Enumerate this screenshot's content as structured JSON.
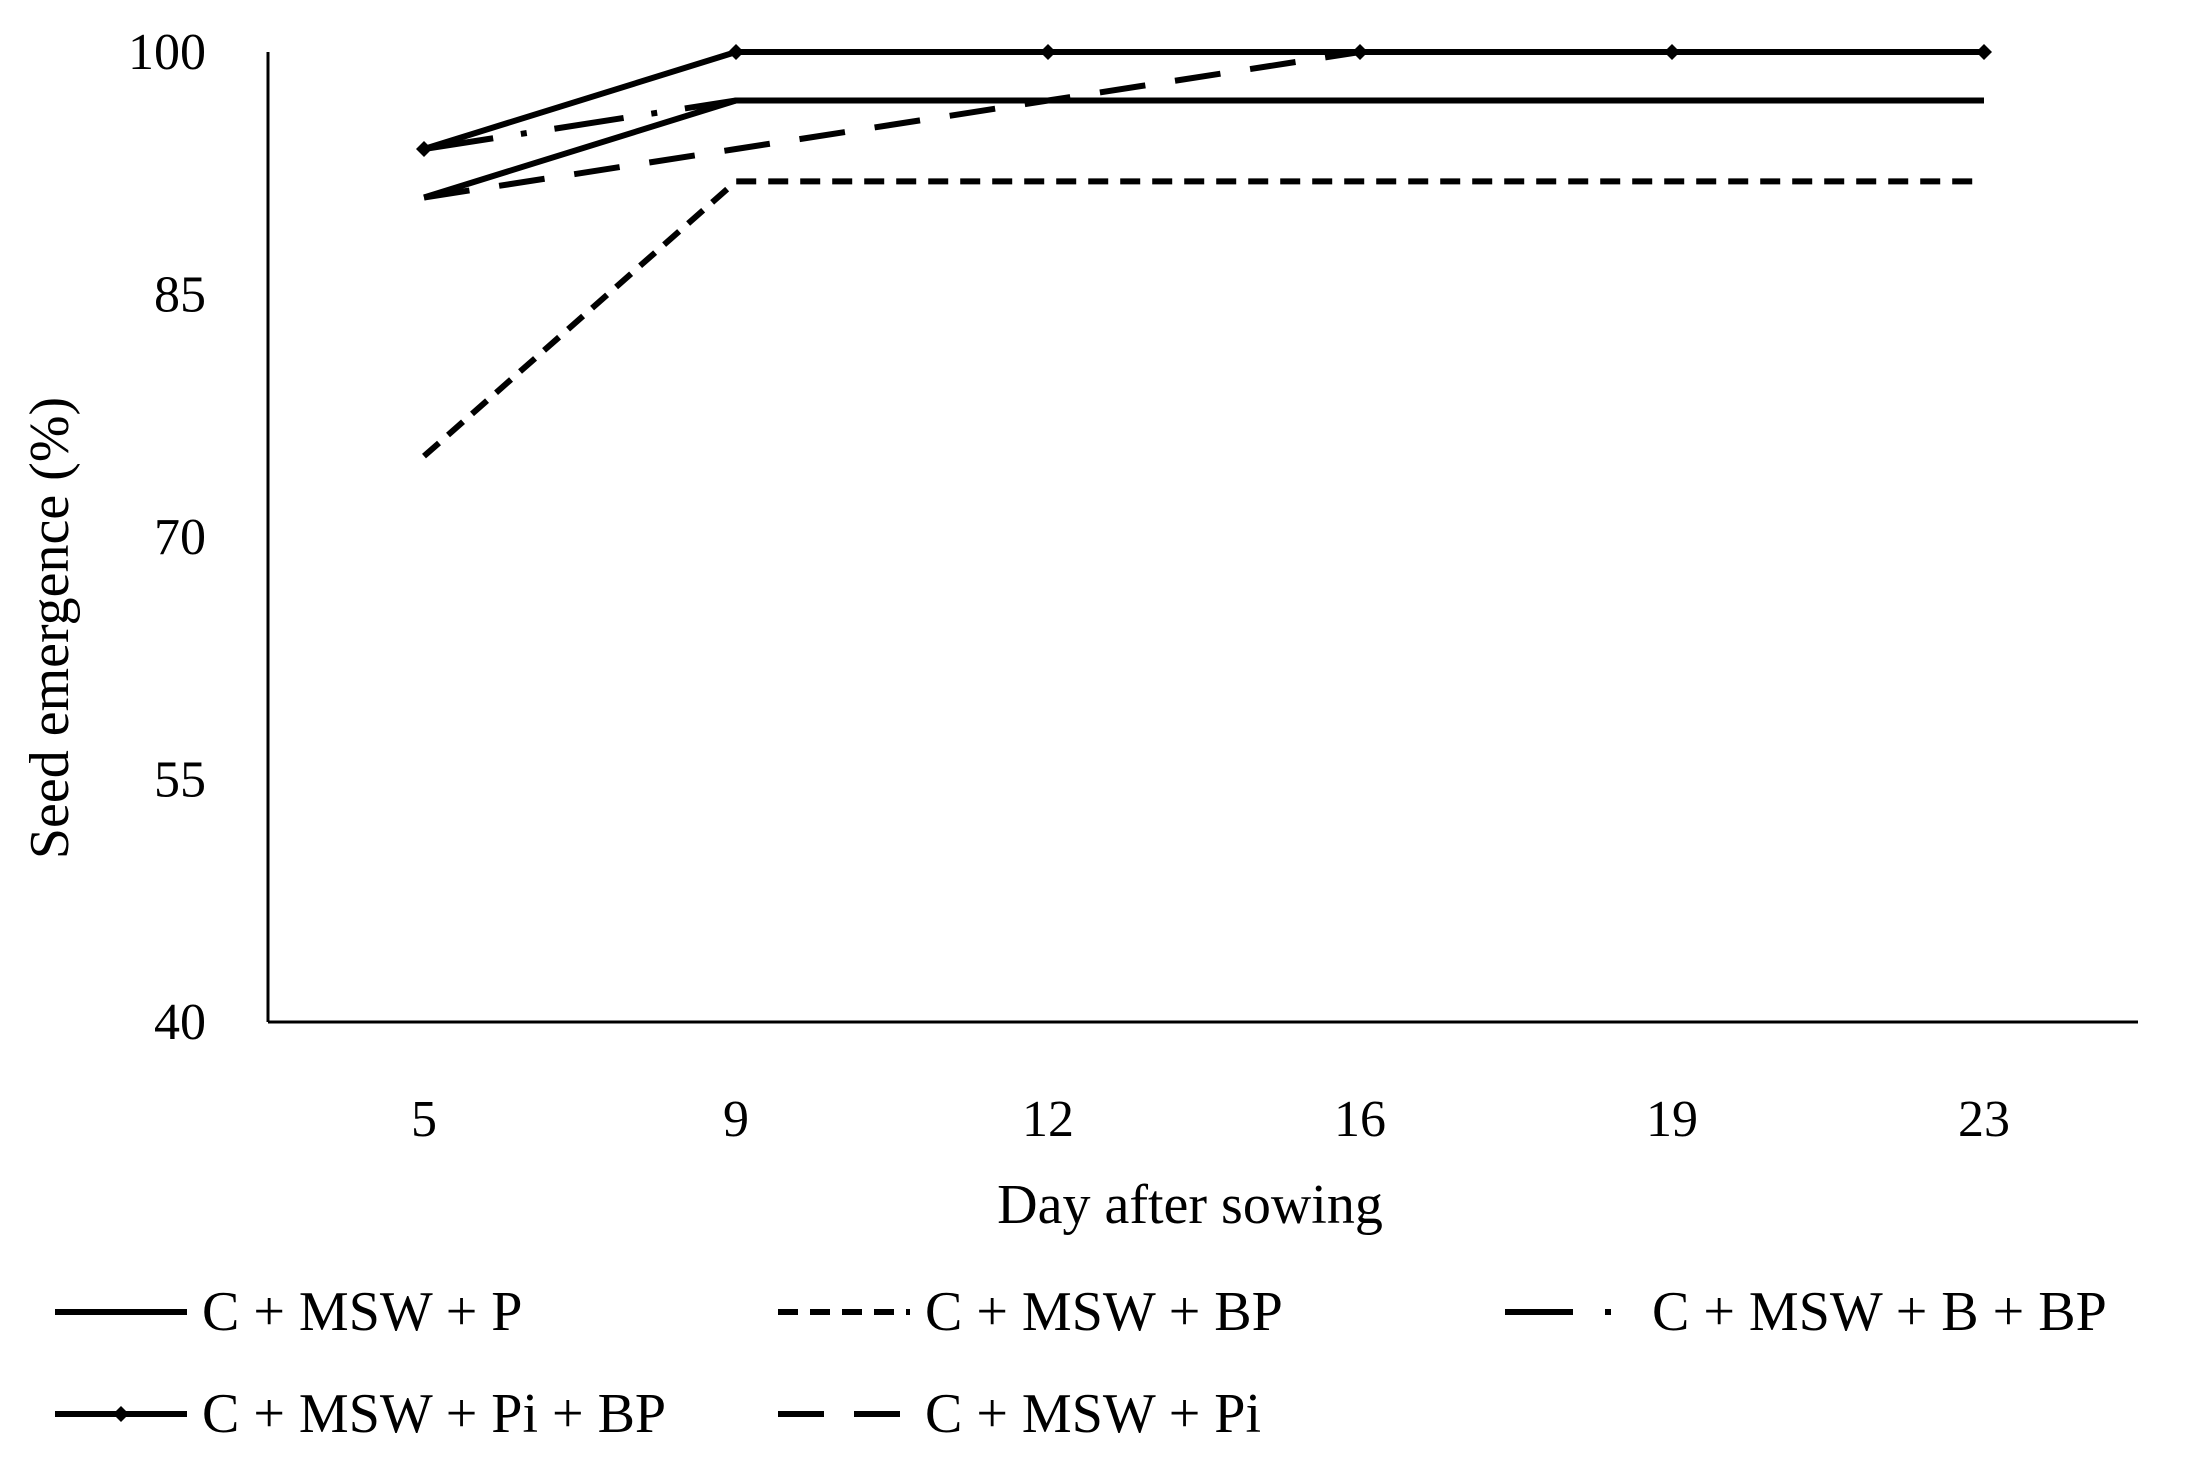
{
  "chart_data": {
    "type": "line",
    "title": "",
    "xlabel": "Day after sowing",
    "ylabel": "Seed emergence (%)",
    "categories": [
      "5",
      "9",
      "12",
      "16",
      "19",
      "23"
    ],
    "ylim": [
      40,
      100
    ],
    "yticks": [
      40,
      55,
      70,
      85,
      100
    ],
    "grid": false,
    "legend_position": "bottom",
    "series": [
      {
        "name": "C + MSW + P",
        "style": "solid",
        "marker": "none",
        "color": "#000000",
        "values": [
          91,
          97,
          97,
          97,
          97,
          97
        ]
      },
      {
        "name": "C + MSW + BP",
        "style": "short-dash",
        "marker": "none",
        "color": "#000000",
        "values": [
          75,
          92,
          92,
          92,
          92,
          92
        ]
      },
      {
        "name": "C + MSW + B + BP",
        "style": "long-dash-dot",
        "marker": "none",
        "color": "#000000",
        "values": [
          94,
          97,
          97,
          97,
          97,
          97
        ]
      },
      {
        "name": "C + MSW + Pi + BP",
        "style": "solid",
        "marker": "diamond",
        "color": "#000000",
        "values": [
          94,
          100,
          100,
          100,
          100,
          100
        ]
      },
      {
        "name": "C + MSW + Pi",
        "style": "long-dash",
        "marker": "none",
        "color": "#000000",
        "values": [
          91,
          94,
          97,
          100,
          100,
          100
        ]
      }
    ]
  }
}
